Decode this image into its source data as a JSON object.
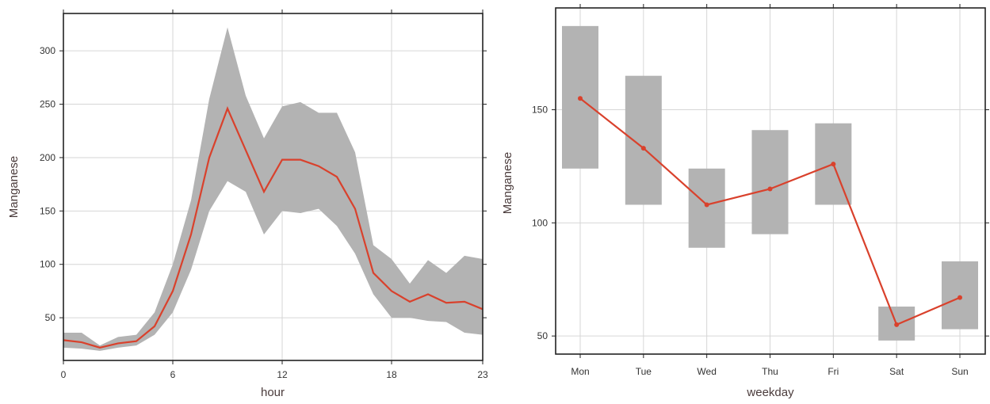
{
  "colors": {
    "line": "#d9412c",
    "band": "#b3b3b3",
    "grid": "#d6d6d6",
    "frame": "#222222"
  },
  "chart_data": [
    {
      "type": "line",
      "xlabel": "hour",
      "ylabel": "Manganese",
      "xlim": [
        0,
        23
      ],
      "ylim": [
        10,
        335
      ],
      "xticks": [
        0,
        6,
        12,
        18,
        23
      ],
      "yticks": [
        50,
        100,
        150,
        200,
        250,
        300
      ],
      "grid": true,
      "x": [
        0,
        1,
        2,
        3,
        4,
        5,
        6,
        7,
        8,
        9,
        10,
        11,
        12,
        13,
        14,
        15,
        16,
        17,
        18,
        19,
        20,
        21,
        22,
        23
      ],
      "series": [
        {
          "values": [
            29,
            27,
            22,
            26,
            28,
            42,
            75,
            128,
            200,
            246,
            207,
            168,
            198,
            198,
            192,
            182,
            152,
            92,
            75,
            65,
            72,
            64,
            65,
            58
          ],
          "lower": [
            22,
            21,
            19,
            22,
            24,
            34,
            55,
            95,
            150,
            178,
            168,
            128,
            150,
            148,
            152,
            136,
            110,
            72,
            50,
            50,
            47,
            46,
            36,
            34
          ],
          "upper": [
            36,
            36,
            24,
            32,
            34,
            55,
            100,
            160,
            255,
            322,
            258,
            218,
            248,
            252,
            242,
            242,
            205,
            118,
            105,
            82,
            104,
            92,
            108,
            105
          ]
        }
      ]
    },
    {
      "type": "line",
      "xlabel": "weekday",
      "ylabel": "Manganese",
      "ylim": [
        42,
        195
      ],
      "yticks": [
        50,
        100,
        150
      ],
      "grid": true,
      "categories": [
        "Mon",
        "Tue",
        "Wed",
        "Thu",
        "Fri",
        "Sat",
        "Sun"
      ],
      "series": [
        {
          "values": [
            155,
            133,
            108,
            115,
            126,
            55,
            67
          ],
          "lower": [
            124,
            108,
            89,
            95,
            108,
            48,
            53
          ],
          "upper": [
            187,
            165,
            124,
            141,
            144,
            63,
            83
          ]
        }
      ]
    }
  ]
}
